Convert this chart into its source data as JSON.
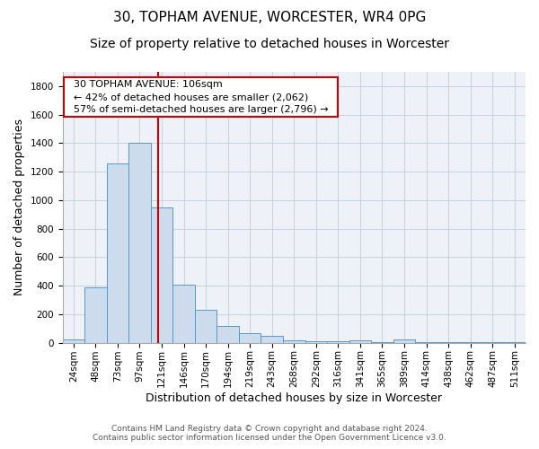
{
  "title1": "30, TOPHAM AVENUE, WORCESTER, WR4 0PG",
  "title2": "Size of property relative to detached houses in Worcester",
  "xlabel": "Distribution of detached houses by size in Worcester",
  "ylabel": "Number of detached properties",
  "bar_labels": [
    "24sqm",
    "48sqm",
    "73sqm",
    "97sqm",
    "121sqm",
    "146sqm",
    "170sqm",
    "194sqm",
    "219sqm",
    "243sqm",
    "268sqm",
    "292sqm",
    "316sqm",
    "341sqm",
    "365sqm",
    "389sqm",
    "414sqm",
    "438sqm",
    "462sqm",
    "487sqm",
    "511sqm"
  ],
  "bar_values": [
    25,
    390,
    1255,
    1400,
    950,
    410,
    228,
    115,
    65,
    50,
    20,
    10,
    8,
    15,
    5,
    25,
    2,
    3,
    2,
    2,
    2
  ],
  "bar_color": "#ccdcec",
  "bar_edge_color": "#5599cc",
  "ylim": [
    0,
    1900
  ],
  "yticks": [
    0,
    200,
    400,
    600,
    800,
    1000,
    1200,
    1400,
    1600,
    1800
  ],
  "vline_x": 3.85,
  "vline_color": "#cc0000",
  "annotation_text": "  30 TOPHAM AVENUE: 106sqm  \n  ← 42% of detached houses are smaller (2,062)  \n  57% of semi-detached houses are larger (2,796) →  ",
  "annotation_box_color": "#ffffff",
  "annotation_box_edge": "#cc0000",
  "footnote": "Contains HM Land Registry data © Crown copyright and database right 2024.\nContains public sector information licensed under the Open Government Licence v3.0.",
  "bg_color": "#eef2f8",
  "grid_color": "#c8d0dc",
  "title1_fontsize": 11,
  "title2_fontsize": 10,
  "axis_label_fontsize": 9,
  "tick_fontsize": 7.5,
  "annotation_fontsize": 8,
  "footnote_fontsize": 6.5
}
